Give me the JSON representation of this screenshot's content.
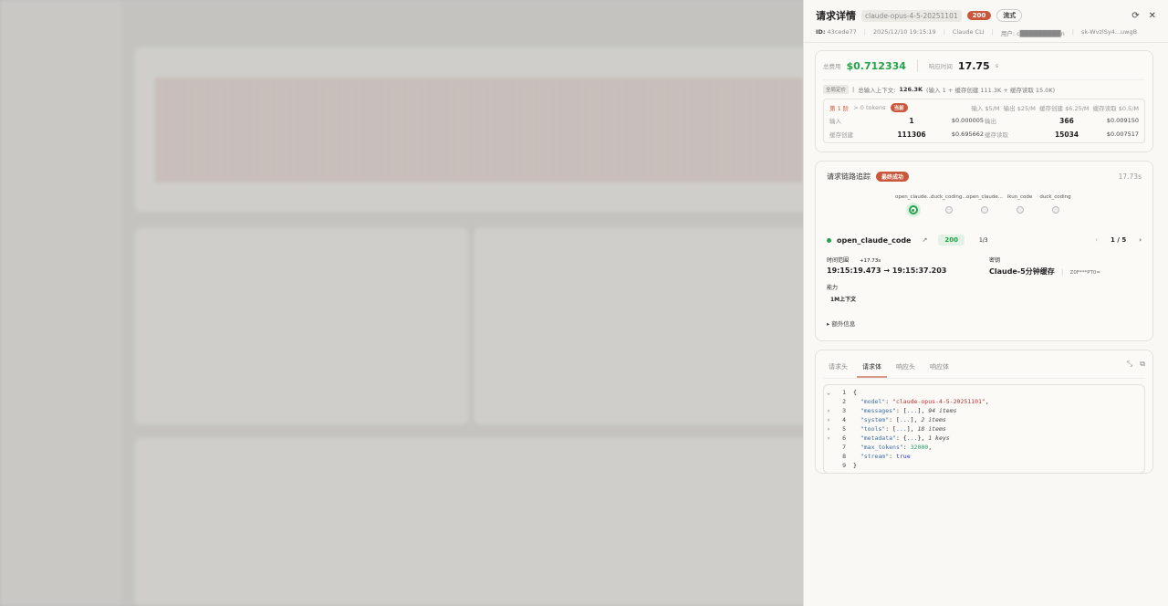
{
  "header": {
    "title": "请求详情",
    "model": "claude-opus-4-5-20251101",
    "status": "200",
    "mode": "流式",
    "id_label": "ID:",
    "id": "43cede77",
    "time": "2025/12/10 19:15:19",
    "client": "Claude CLI",
    "user_label": "用户:",
    "user": "c█████████n",
    "key": "sk-WvzlSy4...uwgB",
    "icons": [
      "refresh-icon",
      "close-icon"
    ]
  },
  "summary": {
    "cost_label": "总费用",
    "cost": "$0.712334",
    "rt_label": "响应时间",
    "rt": "17.75",
    "rt_unit": "s",
    "pricing_tag": "全局定价",
    "context_label": "总输入上下文:",
    "context": "126.3K",
    "context_detail": "(输入 1 + 缓存创建 111.3K + 缓存读取 15.0K)",
    "tier": {
      "name": "第 1 阶",
      "range": "> 0 tokens",
      "badge": "当前",
      "prices": "输入 $5/M  输出 $25/M  缓存创建 $6.25/M  缓存读取 $0.5/M",
      "rows": [
        {
          "l1": "输入",
          "v1": "1",
          "c1": "$0.000005",
          "l2": "输出",
          "v2": "366",
          "c2": "$0.009150"
        },
        {
          "l1": "缓存创建",
          "v1": "111306",
          "c1": "$0.695662",
          "l2": "缓存读取",
          "v2": "15034",
          "c2": "$0.007517"
        }
      ]
    }
  },
  "trace": {
    "title": "请求链路追踪",
    "badge": "最终成功",
    "duration": "17.73s",
    "nodes": [
      "open_claude...",
      "duck_coding...",
      "open_claude...",
      "ikun_code",
      "duck_coding"
    ],
    "provider": "open_claude_code",
    "status": "200",
    "attempt": "1/3",
    "page": "1 / 5",
    "time_label": "时间范围",
    "time_delta": "+17.73s",
    "time_range": "19:15:19.473 → 19:15:37.203",
    "key_label": "密钥",
    "key_name": "Claude-5分钟缓存",
    "key_masked": "Z0F***PT0=",
    "cap_label": "能力",
    "cap": "1M上下文",
    "extra": "额外信息"
  },
  "body": {
    "tabs": [
      "请求头",
      "请求体",
      "响应头",
      "响应体"
    ],
    "active_tab": 1,
    "json": {
      "model": "\"claude-opus-4-5-20251101\"",
      "messages": "94 items",
      "system": "2 items",
      "tools": "18 items",
      "metadata": "1 keys",
      "max_tokens": "32000",
      "stream": "true"
    }
  },
  "colors": {
    "accent": "#c9573b",
    "success": "#22a34a"
  }
}
